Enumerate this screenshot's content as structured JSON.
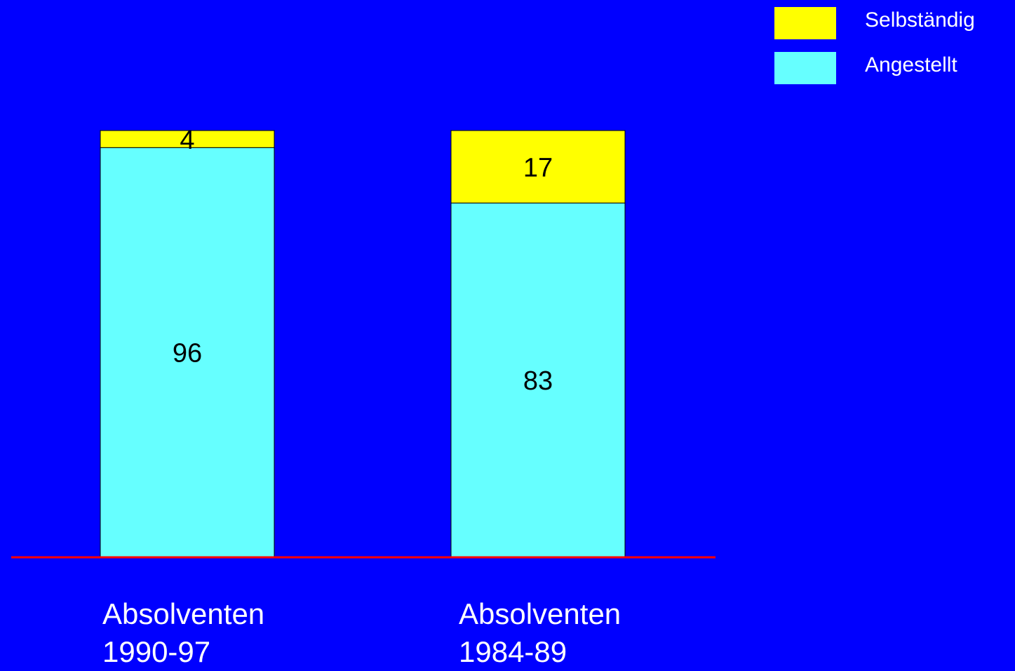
{
  "chart_data": {
    "type": "bar",
    "stacked": true,
    "percent_stacked": true,
    "categories": [
      [
        "Absolventen",
        "1990-97"
      ],
      [
        "Absolventen",
        "1984-89"
      ]
    ],
    "series": [
      {
        "name": "Angestellt",
        "values": [
          96,
          83
        ],
        "color": "#66FFFF"
      },
      {
        "name": "Selbständig",
        "values": [
          4,
          17
        ],
        "color": "#FFFF00"
      }
    ],
    "ylim": [
      0,
      100
    ],
    "title": "",
    "xlabel": "",
    "ylabel": "",
    "grid": false,
    "legend_position": "top-right",
    "baseline_color": "#FF0000",
    "background": "#0000FF"
  },
  "legend": {
    "items": [
      {
        "label": "Selbständig",
        "color": "#FFFF00"
      },
      {
        "label": "Angestellt",
        "color": "#66FFFF"
      }
    ]
  }
}
